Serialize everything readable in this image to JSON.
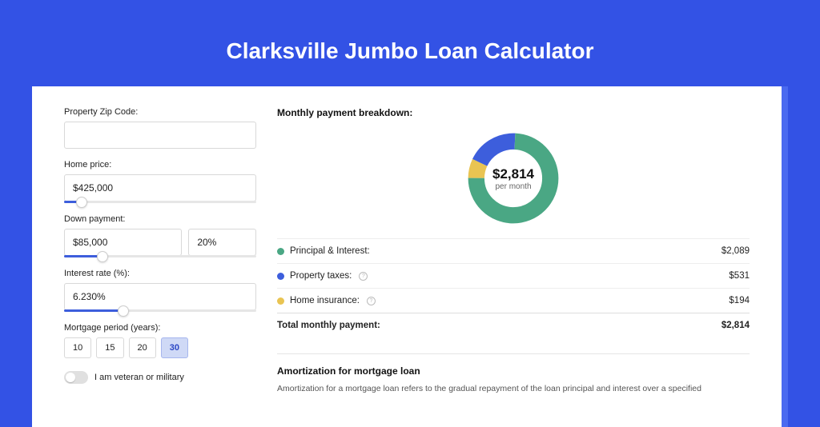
{
  "page": {
    "title": "Clarksville Jumbo Loan Calculator",
    "bg_color": "#3352e5",
    "accent_outer": "#4a6af0",
    "card_bg": "#ffffff"
  },
  "form": {
    "zip": {
      "label": "Property Zip Code:",
      "value": ""
    },
    "home_price": {
      "label": "Home price:",
      "value": "$425,000",
      "slider_pct": 9
    },
    "down_payment": {
      "label": "Down payment:",
      "amount": "$85,000",
      "pct": "20%",
      "slider_pct": 20
    },
    "interest_rate": {
      "label": "Interest rate (%):",
      "value": "6.230%",
      "slider_pct": 31
    },
    "mortgage_period": {
      "label": "Mortgage period (years):",
      "options": [
        "10",
        "15",
        "20",
        "30"
      ],
      "active_index": 3
    },
    "veteran": {
      "label": "I am veteran or military",
      "on": false
    }
  },
  "breakdown": {
    "title": "Monthly payment breakdown:",
    "center_amount": "$2,814",
    "center_sub": "per month",
    "items": [
      {
        "label": "Principal & Interest:",
        "value": "$2,089",
        "color": "#4aa784",
        "info": false,
        "pct": 74.3
      },
      {
        "label": "Property taxes:",
        "value": "$531",
        "color": "#3d5edc",
        "info": true,
        "pct": 18.8
      },
      {
        "label": "Home insurance:",
        "value": "$194",
        "color": "#e9c452",
        "info": true,
        "pct": 6.9
      }
    ],
    "total": {
      "label": "Total monthly payment:",
      "value": "$2,814"
    }
  },
  "amort": {
    "title": "Amortization for mortgage loan",
    "text": "Amortization for a mortgage loan refers to the gradual repayment of the loan principal and interest over a specified"
  },
  "style": {
    "slider_fill": "#3d5edc",
    "slider_track": "#e6e6e6",
    "border": "#d8d8d8",
    "donut_thickness": 18
  }
}
